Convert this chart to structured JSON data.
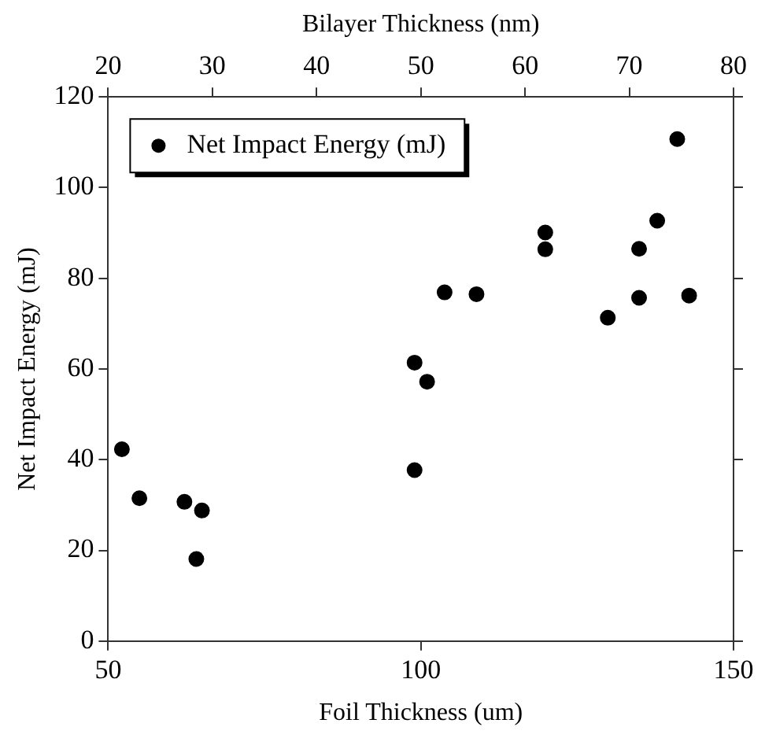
{
  "chart_data": {
    "type": "scatter",
    "xlabel": "Foil Thickness (um)",
    "ylabel": "Net Impact Energy (mJ)",
    "x2label": "Bilayer Thickness (nm)",
    "xlim": [
      50,
      150
    ],
    "xticks": [
      50,
      100,
      150
    ],
    "ylim": [
      0,
      120
    ],
    "yticks": [
      0,
      20,
      40,
      60,
      80,
      100,
      120
    ],
    "x2lim": [
      20,
      80
    ],
    "x2ticks": [
      20,
      30,
      40,
      50,
      60,
      70,
      80
    ],
    "grid": false,
    "legend": "top left",
    "marker": "circle",
    "series": [
      {
        "name": "Net Impact Energy (mJ)",
        "color": "#000000",
        "x": [
          52.2,
          55.0,
          62.2,
          65.0,
          64.1,
          99.0,
          101.0,
          99.0,
          103.8,
          108.9,
          119.9,
          119.9,
          129.9,
          134.9,
          134.9,
          137.8,
          141.0,
          142.9
        ],
        "values": [
          42.3,
          31.5,
          30.7,
          28.8,
          18.1,
          61.4,
          57.2,
          37.7,
          76.9,
          76.5,
          90.1,
          86.4,
          71.3,
          86.5,
          75.7,
          92.7,
          110.7,
          76.2
        ]
      }
    ]
  }
}
